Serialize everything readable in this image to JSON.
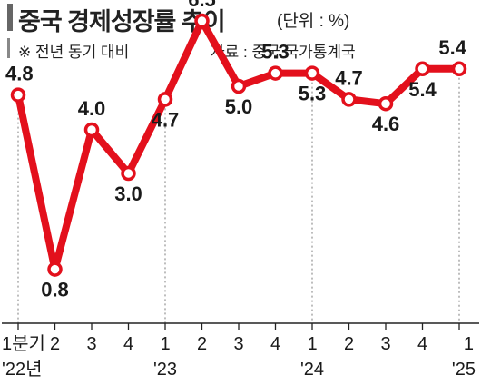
{
  "header": {
    "title": "중국 경제성장률 추이",
    "unit": "(단위 : %)",
    "note": "※ 전년 동기 대비",
    "source": "자료 : 중국 국가통계국"
  },
  "colors": {
    "line": "#e3101c",
    "marker_fill": "#ffffff",
    "axis": "#222222",
    "guide": "#9a9a9a"
  },
  "chart_data": {
    "type": "line",
    "title": "중국 경제성장률 추이",
    "categories": [
      "1분기",
      "2",
      "3",
      "4",
      "1",
      "2",
      "3",
      "4",
      "1",
      "2",
      "3",
      "4",
      "1"
    ],
    "year_labels": [
      "'22년",
      "'23",
      "'24",
      "'25"
    ],
    "year_label_index": [
      0,
      4,
      8,
      12
    ],
    "values": [
      4.8,
      0.8,
      4.0,
      3.0,
      4.7,
      6.5,
      5.0,
      5.3,
      5.3,
      4.7,
      4.6,
      5.4,
      5.4
    ],
    "data_labels": [
      "4.8",
      "0.8",
      "4.0",
      "3.0",
      "4.7",
      "6.5",
      "5.0",
      "5.3",
      "5.3",
      "4.7",
      "4.6",
      "5.4",
      "5.4"
    ],
    "ylabel": "",
    "xlabel": "",
    "grid": false,
    "legend": "none"
  }
}
